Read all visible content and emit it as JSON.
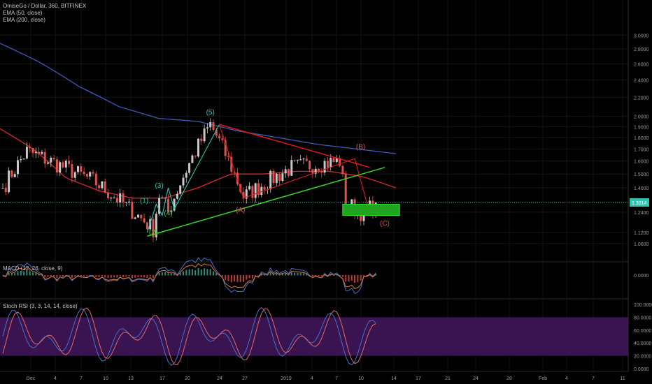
{
  "header": {
    "symbol_line": "OmiseGo / Dollar, 360, BITFINEX",
    "ema50_label": "EMA (50, close)",
    "ema200_label": "EMA (200, close)"
  },
  "panels": {
    "macd_label": "MACD (12, 26, close, 9)",
    "stoch_label": "Stoch RSI (3, 3, 14, 14, close)"
  },
  "colors": {
    "background": "#000000",
    "candle_up": "#c8c8c8",
    "candle_down": "#e0504e",
    "ema50": "#d42a2a",
    "ema200": "#3d5ab8",
    "trend_red": "#e0191c",
    "trend_green": "#3ad42b",
    "wave_teal": "#2ec4b0",
    "wave_green": "#3ad42b",
    "wave_red": "#e0504e",
    "target_box": "#1fa51f",
    "price_line": "#2ec4b0",
    "stoch_band": "#3a1450",
    "stoch_k": "#4a70c8",
    "stoch_d": "#e06a6a"
  },
  "chart_data": {
    "type": "candlestick",
    "title": "OmiseGo / Dollar, 360, BITFINEX",
    "y_axis": {
      "ticks": [
        "3.0000",
        "2.8000",
        "2.6000",
        "2.4000",
        "2.2000",
        "2.0000",
        "1.9000",
        "1.8000",
        "1.7000",
        "1.6000",
        "1.5000",
        "1.4000",
        "1.3000",
        "1.2400",
        "1.1200",
        "1.0600"
      ],
      "scale": "log"
    },
    "x_axis": {
      "ticks": [
        "Dec",
        "4",
        "7",
        "10",
        "13",
        "17",
        "20",
        "24",
        "27",
        "2019",
        "4",
        "7",
        "10",
        "14",
        "17",
        "21",
        "24",
        "28",
        "Feb",
        "4",
        "7",
        "11"
      ]
    },
    "last_price": "1.3014",
    "price_anchors": {
      "start": 1.4,
      "high1": 1.68,
      "low1": 1.14,
      "wave3": 1.35,
      "wave4": 1.24,
      "peak5": 1.92,
      "a": 1.34,
      "b": 1.6,
      "c_low": 1.23,
      "end": 1.3
    },
    "ema50_anchors": [
      1.88,
      1.7,
      1.47,
      1.38,
      1.33,
      1.33,
      1.4,
      1.5,
      1.5,
      1.52,
      1.52,
      1.48,
      1.4
    ],
    "ema200_anchors": [
      2.88,
      2.62,
      2.32,
      2.1,
      1.98,
      1.95,
      1.86,
      1.8,
      1.74,
      1.7,
      1.66
    ],
    "wave_labels": [
      {
        "text": "(1)",
        "group": "teal",
        "time_index": 47,
        "price": 1.3
      },
      {
        "text": "(2)",
        "group": "green",
        "time_index": 50,
        "price": 1.11
      },
      {
        "text": "(3)",
        "group": "teal",
        "time_index": 52,
        "price": 1.4
      },
      {
        "text": "(4)",
        "group": "green",
        "time_index": 55,
        "price": 1.22
      },
      {
        "text": "(5)",
        "group": "teal",
        "time_index": 69,
        "price": 2.02
      },
      {
        "text": "(A)",
        "group": "red",
        "time_index": 79,
        "price": 1.24
      },
      {
        "text": "(B)",
        "group": "red",
        "time_index": 112,
        "price": 1.7
      },
      {
        "text": "(C)",
        "group": "red",
        "time_index": 120,
        "price": 1.16
      }
    ],
    "target_zone": {
      "time_from": 106,
      "time_to": 124,
      "price_high": 1.29,
      "price_low": 1.22
    },
    "macd_axis": {
      "ticks": [
        "0.0000"
      ]
    },
    "stoch_axis": {
      "ticks": [
        "100.0000",
        "80.0000",
        "60.0000",
        "40.0000",
        "20.0000",
        "0.0000"
      ],
      "band": [
        20,
        80
      ]
    }
  }
}
